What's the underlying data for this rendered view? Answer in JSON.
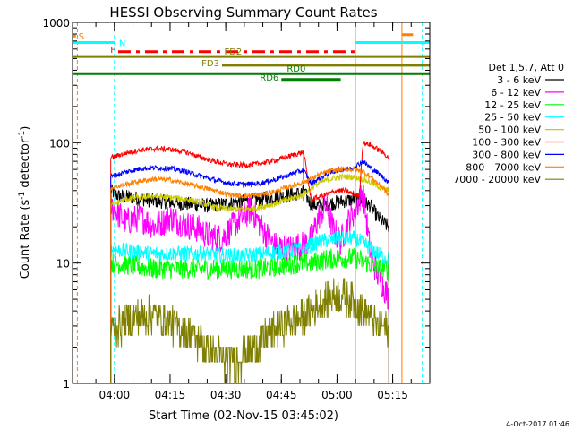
{
  "chart_data": {
    "type": "line",
    "title": "HESSI Observing Summary Count Rates",
    "xlabel": "Start Time (02-Nov-15 03:45:02)",
    "ylabel_parts": [
      "Count Rate (s",
      "-1",
      " detector",
      "-1",
      ")"
    ],
    "yscale": "log",
    "ylim": [
      1,
      1000
    ],
    "xlim_minutes": [
      3.7,
      100.0
    ],
    "y_ticks": [
      {
        "v": 1,
        "label": "1"
      },
      {
        "v": 10,
        "label": "10"
      },
      {
        "v": 100,
        "label": "100"
      },
      {
        "v": 1000,
        "label": "1000"
      }
    ],
    "x_ticks": [
      {
        "t": 15,
        "label": "04:00"
      },
      {
        "t": 30,
        "label": "04:15"
      },
      {
        "t": 45,
        "label": "04:30"
      },
      {
        "t": 60,
        "label": "04:45"
      },
      {
        "t": 75,
        "label": "05:00"
      },
      {
        "t": 90,
        "label": "05:15"
      }
    ],
    "legend_title": "Det 1,5,7, Att 0",
    "data_gap_minutes": [
      66.0,
      67.5
    ],
    "series": [
      {
        "name": "3 - 6 keV",
        "color": "#000000",
        "noise": 0.14,
        "pts": [
          [
            14,
            40
          ],
          [
            16,
            36
          ],
          [
            20,
            35
          ],
          [
            25,
            33
          ],
          [
            30,
            32
          ],
          [
            35,
            31
          ],
          [
            40,
            30
          ],
          [
            45,
            31
          ],
          [
            50,
            33
          ],
          [
            55,
            34
          ],
          [
            60,
            36
          ],
          [
            65,
            38
          ],
          [
            66,
            39
          ],
          [
            68,
            31
          ],
          [
            70,
            30
          ],
          [
            75,
            32
          ],
          [
            80,
            34
          ],
          [
            82,
            32
          ],
          [
            84,
            30
          ],
          [
            86,
            24
          ],
          [
            88,
            21
          ],
          [
            89,
            20
          ]
        ]
      },
      {
        "name": "6 - 12 keV",
        "color": "#ff00ff",
        "noise": 0.28,
        "pts": [
          [
            14,
            30
          ],
          [
            18,
            22
          ],
          [
            22,
            24
          ],
          [
            26,
            20
          ],
          [
            30,
            24
          ],
          [
            34,
            21
          ],
          [
            38,
            19
          ],
          [
            40,
            17
          ],
          [
            44,
            16
          ],
          [
            48,
            22
          ],
          [
            52,
            28
          ],
          [
            55,
            19
          ],
          [
            58,
            14
          ],
          [
            62,
            13
          ],
          [
            65,
            14
          ],
          [
            66,
            14
          ],
          [
            68,
            16
          ],
          [
            70,
            24
          ],
          [
            72,
            30
          ],
          [
            74,
            19
          ],
          [
            76,
            15
          ],
          [
            78,
            22
          ],
          [
            80,
            28
          ],
          [
            82,
            40
          ],
          [
            84,
            12
          ],
          [
            86,
            8
          ],
          [
            88,
            6
          ],
          [
            89,
            5
          ]
        ]
      },
      {
        "name": "12 - 25 keV",
        "color": "#00ff00",
        "noise": 0.2,
        "pts": [
          [
            14,
            10
          ],
          [
            20,
            9.5
          ],
          [
            25,
            9
          ],
          [
            30,
            9
          ],
          [
            35,
            9
          ],
          [
            40,
            9
          ],
          [
            45,
            9
          ],
          [
            50,
            9
          ],
          [
            55,
            9
          ],
          [
            60,
            9.5
          ],
          [
            65,
            10
          ],
          [
            66,
            10
          ],
          [
            68,
            10
          ],
          [
            70,
            10.5
          ],
          [
            75,
            11
          ],
          [
            80,
            11
          ],
          [
            83,
            10
          ],
          [
            86,
            9
          ],
          [
            88,
            9
          ],
          [
            89,
            8.5
          ]
        ]
      },
      {
        "name": "25 - 50 keV",
        "color": "#00ffff",
        "noise": 0.15,
        "pts": [
          [
            14,
            13
          ],
          [
            20,
            12.5
          ],
          [
            25,
            12
          ],
          [
            30,
            12
          ],
          [
            35,
            12
          ],
          [
            40,
            12
          ],
          [
            45,
            11.5
          ],
          [
            50,
            11.5
          ],
          [
            55,
            12
          ],
          [
            60,
            12.5
          ],
          [
            65,
            13
          ],
          [
            66,
            13
          ],
          [
            68,
            14
          ],
          [
            70,
            15
          ],
          [
            75,
            16
          ],
          [
            80,
            16
          ],
          [
            83,
            14
          ],
          [
            86,
            12
          ],
          [
            88,
            11
          ],
          [
            89,
            11
          ]
        ]
      },
      {
        "name": "50 - 100 keV",
        "color": "#cccc00",
        "noise": 0.06,
        "pts": [
          [
            14,
            30
          ],
          [
            18,
            34
          ],
          [
            22,
            35
          ],
          [
            26,
            36
          ],
          [
            30,
            35
          ],
          [
            34,
            34
          ],
          [
            38,
            32
          ],
          [
            42,
            29
          ],
          [
            46,
            28
          ],
          [
            50,
            28
          ],
          [
            54,
            29
          ],
          [
            58,
            31
          ],
          [
            62,
            34
          ],
          [
            65,
            36
          ],
          [
            66,
            37
          ],
          [
            68,
            42
          ],
          [
            70,
            46
          ],
          [
            73,
            50
          ],
          [
            76,
            52
          ],
          [
            79,
            52
          ],
          [
            82,
            50
          ],
          [
            85,
            45
          ],
          [
            87,
            42
          ],
          [
            89,
            40
          ]
        ]
      },
      {
        "name": "100 - 300 keV",
        "color": "#ff0000",
        "noise": 0.05,
        "pts": [
          [
            14,
            75
          ],
          [
            18,
            82
          ],
          [
            22,
            87
          ],
          [
            26,
            89
          ],
          [
            30,
            88
          ],
          [
            34,
            84
          ],
          [
            38,
            76
          ],
          [
            42,
            70
          ],
          [
            46,
            66
          ],
          [
            50,
            65
          ],
          [
            54,
            67
          ],
          [
            58,
            71
          ],
          [
            62,
            77
          ],
          [
            65,
            82
          ],
          [
            66,
            84
          ],
          [
            68,
            34
          ],
          [
            70,
            35
          ],
          [
            73,
            38
          ],
          [
            75,
            40
          ],
          [
            77,
            40
          ],
          [
            79,
            38
          ],
          [
            81,
            36
          ],
          [
            82,
            100
          ],
          [
            84,
            96
          ],
          [
            86,
            88
          ],
          [
            88,
            80
          ],
          [
            89,
            74
          ]
        ]
      },
      {
        "name": "300 - 800 keV",
        "color": "#0000ff",
        "noise": 0.05,
        "pts": [
          [
            14,
            52
          ],
          [
            18,
            57
          ],
          [
            22,
            61
          ],
          [
            26,
            62
          ],
          [
            30,
            61
          ],
          [
            34,
            58
          ],
          [
            38,
            53
          ],
          [
            42,
            49
          ],
          [
            46,
            46
          ],
          [
            50,
            45
          ],
          [
            54,
            46
          ],
          [
            58,
            49
          ],
          [
            62,
            54
          ],
          [
            65,
            58
          ],
          [
            66,
            59
          ],
          [
            68,
            46
          ],
          [
            70,
            50
          ],
          [
            73,
            56
          ],
          [
            76,
            60
          ],
          [
            79,
            61
          ],
          [
            82,
            70
          ],
          [
            84,
            62
          ],
          [
            86,
            56
          ],
          [
            88,
            50
          ],
          [
            89,
            46
          ]
        ]
      },
      {
        "name": "800 - 7000 keV",
        "color": "#ff7f00",
        "noise": 0.05,
        "pts": [
          [
            14,
            42
          ],
          [
            18,
            45
          ],
          [
            22,
            48
          ],
          [
            26,
            50
          ],
          [
            30,
            49
          ],
          [
            34,
            46
          ],
          [
            38,
            43
          ],
          [
            42,
            40
          ],
          [
            46,
            37
          ],
          [
            50,
            36
          ],
          [
            54,
            37
          ],
          [
            58,
            39
          ],
          [
            62,
            43
          ],
          [
            65,
            46
          ],
          [
            66,
            47
          ],
          [
            68,
            50
          ],
          [
            70,
            54
          ],
          [
            73,
            58
          ],
          [
            76,
            60
          ],
          [
            79,
            60
          ],
          [
            82,
            58
          ],
          [
            84,
            52
          ],
          [
            86,
            46
          ],
          [
            88,
            40
          ],
          [
            89,
            36
          ]
        ]
      },
      {
        "name": "7000 - 20000 keV",
        "color": "#7f7f00",
        "noise": 0.35,
        "step": true,
        "pts": [
          [
            14,
            2.8
          ],
          [
            20,
            3.5
          ],
          [
            25,
            3.8
          ],
          [
            30,
            3.2
          ],
          [
            35,
            2.6
          ],
          [
            40,
            2.0
          ],
          [
            45,
            1.5
          ],
          [
            50,
            1.7
          ],
          [
            55,
            2.3
          ],
          [
            60,
            3.0
          ],
          [
            65,
            3.5
          ],
          [
            66,
            3.6
          ],
          [
            68,
            4.0
          ],
          [
            70,
            4.5
          ],
          [
            73,
            5.2
          ],
          [
            76,
            5.5
          ],
          [
            79,
            5.0
          ],
          [
            82,
            4.0
          ],
          [
            84,
            3.5
          ],
          [
            86,
            3.0
          ],
          [
            88,
            2.8
          ],
          [
            89,
            2.7
          ]
        ]
      }
    ],
    "flag_bars": [
      {
        "label": "S",
        "color": "#ff7f00",
        "t0": 3.8,
        "t1": 4.6,
        "y": 770,
        "dashed": false,
        "label_side": "right"
      },
      {
        "label": "N",
        "color": "#00ffff",
        "t0": 3.7,
        "t1": 15.0,
        "y": 680,
        "dashed": false,
        "label_side": "right_of_end"
      },
      {
        "label": "",
        "color": "#00ffff",
        "t0": 80.0,
        "t1": 100.0,
        "y": 680,
        "dashed": false,
        "label_side": "none"
      },
      {
        "label": "",
        "color": "#ff7f00",
        "t0": 92.5,
        "t1": 95.5,
        "y": 790,
        "dashed": false,
        "label_side": "none"
      },
      {
        "label": "F",
        "color": "#ff0000",
        "t0": 16.0,
        "t1": 80.0,
        "y": 570,
        "dashed": true,
        "label_side": "left"
      },
      {
        "label": "FD2",
        "color": "#7f7f00",
        "t0": 3.7,
        "t1": 100.0,
        "y": 520,
        "dashed": false,
        "label_side": "mid",
        "label_t": 47
      },
      {
        "label": "FD3",
        "color": "#7f7f00",
        "t0": 44.0,
        "t1": 100.0,
        "y": 440,
        "dashed": false,
        "label_side": "left"
      },
      {
        "label": "RD0",
        "color": "#007f00",
        "t0": 3.7,
        "t1": 100.0,
        "y": 375,
        "dashed": false,
        "label_side": "mid",
        "label_t": 64
      },
      {
        "label": "RD6",
        "color": "#007f00",
        "t0": 60.0,
        "t1": 76.0,
        "y": 335,
        "dashed": false,
        "label_side": "left"
      }
    ],
    "vlines": [
      {
        "t": 5.0,
        "color": "#ff7f00",
        "dashed": true
      },
      {
        "t": 15.0,
        "color": "#00ffff",
        "dashed": true
      },
      {
        "t": 80.0,
        "color": "#00ffff",
        "dashed": false
      },
      {
        "t": 92.5,
        "color": "#ff7f00",
        "dashed": false
      },
      {
        "t": 96.0,
        "color": "#ff7f00",
        "dashed": true
      },
      {
        "t": 98.0,
        "color": "#00ffff",
        "dashed": true
      }
    ]
  },
  "timestamp": "4-Oct-2017 01:46"
}
